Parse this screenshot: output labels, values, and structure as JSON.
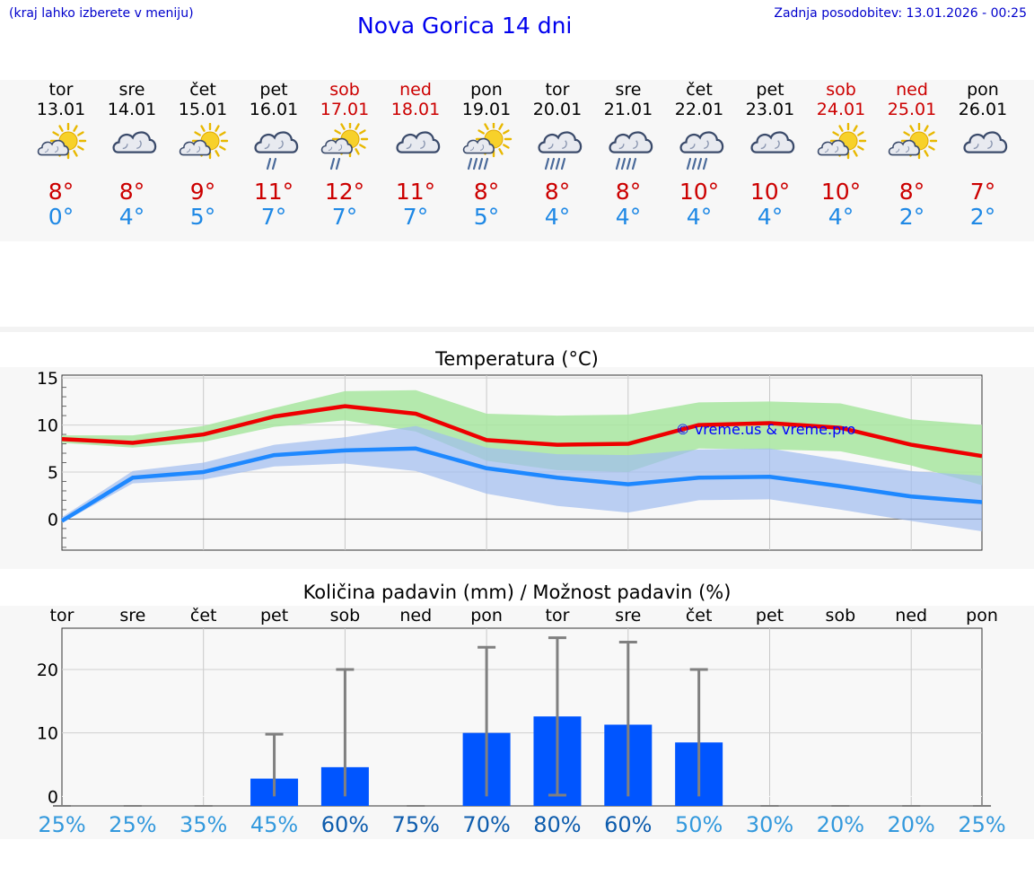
{
  "header": {
    "location_hint": "(kraj lahko izberete v meniju)",
    "title": "Nova Gorica 14 dni",
    "updated": "Zadnja posodobitev: 13.01.2026 - 00:25"
  },
  "days": [
    {
      "name": "tor",
      "date": "13.01",
      "weekend": false,
      "icon": "partly-cloudy-sun-icon",
      "tmax": "8°",
      "tmin": "0°",
      "pop": "25%"
    },
    {
      "name": "sre",
      "date": "14.01",
      "weekend": false,
      "icon": "cloudy-icon",
      "tmax": "8°",
      "tmin": "4°",
      "pop": "25%"
    },
    {
      "name": "čet",
      "date": "15.01",
      "weekend": false,
      "icon": "partly-cloudy-sun-icon",
      "tmax": "9°",
      "tmin": "5°",
      "pop": "35%"
    },
    {
      "name": "pet",
      "date": "16.01",
      "weekend": false,
      "icon": "cloud-light-rain-icon",
      "tmax": "11°",
      "tmin": "7°",
      "pop": "45%"
    },
    {
      "name": "sob",
      "date": "17.01",
      "weekend": true,
      "icon": "sun-cloud-light-rain-icon",
      "tmax": "12°",
      "tmin": "7°",
      "pop": "60%"
    },
    {
      "name": "ned",
      "date": "18.01",
      "weekend": true,
      "icon": "cloudy-icon",
      "tmax": "11°",
      "tmin": "7°",
      "pop": "75%"
    },
    {
      "name": "pon",
      "date": "19.01",
      "weekend": false,
      "icon": "sun-cloud-rain-icon",
      "tmax": "8°",
      "tmin": "5°",
      "pop": "70%"
    },
    {
      "name": "tor",
      "date": "20.01",
      "weekend": false,
      "icon": "cloud-rain-icon",
      "tmax": "8°",
      "tmin": "4°",
      "pop": "80%"
    },
    {
      "name": "sre",
      "date": "21.01",
      "weekend": false,
      "icon": "cloud-rain-icon",
      "tmax": "8°",
      "tmin": "4°",
      "pop": "60%"
    },
    {
      "name": "čet",
      "date": "22.01",
      "weekend": false,
      "icon": "cloud-rain-icon",
      "tmax": "10°",
      "tmin": "4°",
      "pop": "50%"
    },
    {
      "name": "pet",
      "date": "23.01",
      "weekend": false,
      "icon": "cloudy-icon",
      "tmax": "10°",
      "tmin": "4°",
      "pop": "30%"
    },
    {
      "name": "sob",
      "date": "24.01",
      "weekend": true,
      "icon": "partly-cloudy-sun-icon",
      "tmax": "10°",
      "tmin": "4°",
      "pop": "20%"
    },
    {
      "name": "ned",
      "date": "25.01",
      "weekend": true,
      "icon": "partly-cloudy-sun-icon",
      "tmax": "8°",
      "tmin": "2°",
      "pop": "20%"
    },
    {
      "name": "pon",
      "date": "26.01",
      "weekend": false,
      "icon": "cloudy-icon",
      "tmax": "7°",
      "tmin": "2°",
      "pop": "25%"
    }
  ],
  "colors": {
    "tmax": "#ee0000",
    "tmin": "#1e88ff",
    "tmax_band": "#a8e6a0",
    "tmin_band": "#9fbcf0",
    "precip_bar": "#0055ff",
    "error_bar": "#808080",
    "pop_low": "#3399dd",
    "pop_high": "#0d5cad",
    "watermark": "#0000ff"
  },
  "chart_data": [
    {
      "type": "line",
      "title": "Temperatura (°C)",
      "watermark": "© vreme.us & vreme.pro",
      "ylim": [
        -3.3,
        15.3
      ],
      "yticks": [
        0,
        5,
        10,
        15
      ],
      "categories": [
        "13.01",
        "14.01",
        "15.01",
        "16.01",
        "17.01",
        "18.01",
        "19.01",
        "20.01",
        "21.01",
        "22.01",
        "23.01",
        "24.01",
        "25.01",
        "26.01"
      ],
      "series": [
        {
          "name": "Tmax",
          "values": [
            8.5,
            8.1,
            9.0,
            10.9,
            12.0,
            11.2,
            8.4,
            7.9,
            8.0,
            10.0,
            10.2,
            9.7,
            7.9,
            6.7
          ],
          "band_low": [
            8.1,
            7.6,
            8.2,
            9.8,
            10.5,
            9.3,
            6.2,
            5.2,
            5.0,
            7.5,
            7.4,
            7.2,
            5.7,
            3.6
          ],
          "band_high": [
            8.9,
            8.9,
            9.9,
            11.8,
            13.6,
            13.7,
            11.2,
            11.0,
            11.1,
            12.4,
            12.5,
            12.3,
            10.6,
            10.0
          ]
        },
        {
          "name": "Tmin",
          "values": [
            -0.2,
            4.4,
            5.0,
            6.8,
            7.3,
            7.5,
            5.4,
            4.4,
            3.7,
            4.4,
            4.5,
            3.5,
            2.4,
            1.8
          ],
          "band_low": [
            -0.4,
            3.8,
            4.2,
            5.6,
            5.9,
            5.1,
            2.7,
            1.4,
            0.7,
            2.0,
            2.1,
            1.0,
            -0.2,
            -1.3
          ],
          "band_high": [
            0.2,
            5.1,
            6.0,
            7.9,
            8.7,
            9.9,
            7.6,
            6.9,
            6.8,
            7.4,
            7.5,
            6.3,
            5.1,
            4.6
          ]
        }
      ]
    },
    {
      "type": "bar",
      "title": "Količina padavin (mm) / Možnost padavin (%)",
      "ylim": [
        -1.5,
        26.5
      ],
      "yticks": [
        0,
        10,
        20
      ],
      "categories": [
        "tor",
        "sre",
        "čet",
        "pet",
        "sob",
        "ned",
        "pon",
        "tor",
        "sre",
        "čet",
        "pet",
        "sob",
        "ned",
        "pon"
      ],
      "values": [
        0,
        0,
        0,
        2.8,
        4.6,
        0,
        10,
        12.6,
        11.3,
        8.5,
        0,
        0,
        0,
        0
      ],
      "error_high": [
        0,
        0,
        0,
        9.8,
        20,
        0,
        23.5,
        25,
        24.3,
        20,
        0,
        0,
        0,
        0
      ],
      "error_low": [
        0,
        0,
        0,
        0,
        0,
        0,
        0,
        0.2,
        0,
        0,
        0,
        0,
        0,
        0
      ],
      "probability_percent": [
        25,
        25,
        35,
        45,
        60,
        75,
        70,
        80,
        60,
        50,
        30,
        20,
        20,
        25
      ]
    }
  ]
}
